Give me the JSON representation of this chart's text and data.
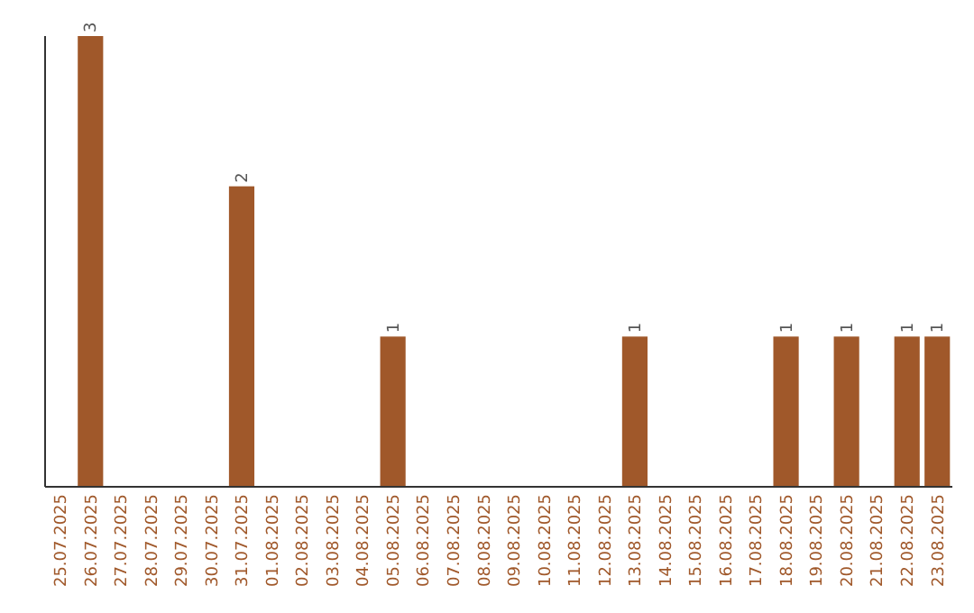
{
  "chart_data": {
    "type": "bar",
    "categories": [
      "25.07.2025",
      "26.07.2025",
      "27.07.2025",
      "28.07.2025",
      "29.07.2025",
      "30.07.2025",
      "31.07.2025",
      "01.08.2025",
      "02.08.2025",
      "03.08.2025",
      "04.08.2025",
      "05.08.2025",
      "06.08.2025",
      "07.08.2025",
      "08.08.2025",
      "09.08.2025",
      "10.08.2025",
      "11.08.2025",
      "12.08.2025",
      "13.08.2025",
      "14.08.2025",
      "15.08.2025",
      "16.08.2025",
      "17.08.2025",
      "18.08.2025",
      "19.08.2025",
      "20.08.2025",
      "21.08.2025",
      "22.08.2025",
      "23.08.2025"
    ],
    "values": [
      0,
      3,
      0,
      0,
      0,
      0,
      2,
      0,
      0,
      0,
      0,
      1,
      0,
      0,
      0,
      0,
      0,
      0,
      0,
      1,
      0,
      0,
      0,
      0,
      1,
      0,
      1,
      0,
      1,
      1
    ],
    "value_labels": [
      null,
      "3",
      null,
      null,
      null,
      null,
      "2",
      null,
      null,
      null,
      null,
      "1",
      null,
      null,
      null,
      null,
      null,
      null,
      null,
      "1",
      null,
      null,
      null,
      null,
      "1",
      null,
      "1",
      null,
      "1",
      "1"
    ],
    "color": "#a0582a",
    "ylim": [
      0,
      3
    ],
    "tick_labels": "x"
  }
}
